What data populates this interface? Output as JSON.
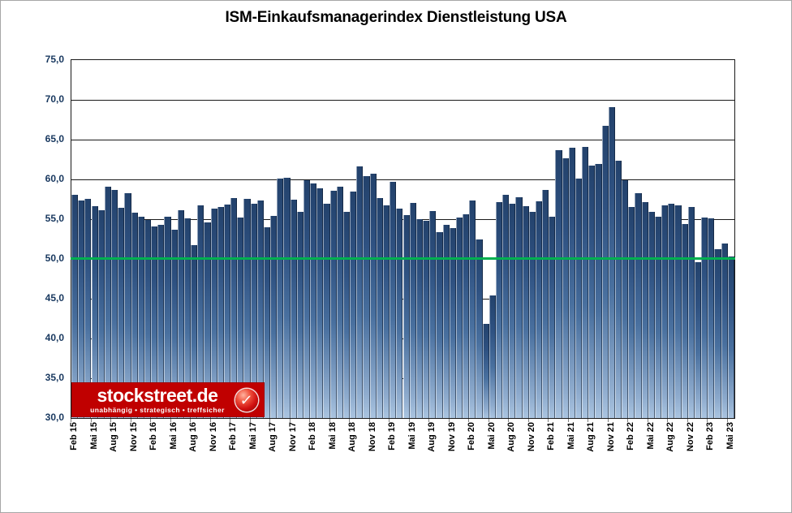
{
  "title": "ISM-Einkaufsmanagerindex Dienstleistung USA",
  "logo": {
    "name": "stockstreet.de",
    "tagline": "unabhängig • strategisch • treffsicher",
    "check_glyph": "✓",
    "bg_color": "#c00000"
  },
  "colors": {
    "bar_gradient_top": "#23426c",
    "bar_gradient_bottom": "#aac4e0",
    "reference_line": "#00b050",
    "y_axis_label": "#17375e",
    "gridline": "#1a1a1a",
    "tick": "#808080"
  },
  "chart_data": {
    "type": "bar",
    "title": "ISM-Einkaufsmanagerindex Dienstleistung USA",
    "frequency": "monthly",
    "x_start": "Feb 2015",
    "x_end": "Mai 2023",
    "x_tick_every_n_bars": 3,
    "x_tick_labels": [
      "Feb 15",
      "Mai 15",
      "Aug 15",
      "Nov 15",
      "Feb 16",
      "Mai 16",
      "Aug 16",
      "Nov 16",
      "Feb 17",
      "Mai 17",
      "Aug 17",
      "Nov 17",
      "Feb 18",
      "Mai 18",
      "Aug 18",
      "Nov 18",
      "Feb 19",
      "Mai 19",
      "Aug 19",
      "Nov 19",
      "Feb 20",
      "Mai 20",
      "Aug 20",
      "Nov 20",
      "Feb 21",
      "Mai 21",
      "Aug 21",
      "Nov 21",
      "Feb 22",
      "Mai 22",
      "Aug 22",
      "Nov 22",
      "Feb 23",
      "Mai 23"
    ],
    "y_tick_labels": [
      "75,0",
      "70,0",
      "65,0",
      "60,0",
      "55,0",
      "50,0",
      "45,0",
      "40,0",
      "35,0",
      "30,0"
    ],
    "ylim": [
      30,
      75
    ],
    "grid": "horizontal",
    "legend": "none",
    "reference_line_value": 50.0,
    "values": [
      58.1,
      57.3,
      57.6,
      56.6,
      56.1,
      59.1,
      58.7,
      56.4,
      58.3,
      55.8,
      55.3,
      54.9,
      54.1,
      54.3,
      55.3,
      53.7,
      56.1,
      55.1,
      51.7,
      56.7,
      54.6,
      56.3,
      56.5,
      56.8,
      57.7,
      55.2,
      57.6,
      56.9,
      57.3,
      54.0,
      55.4,
      60.1,
      60.2,
      57.4,
      55.9,
      59.9,
      59.5,
      58.9,
      56.9,
      58.6,
      59.1,
      55.9,
      58.5,
      61.6,
      60.4,
      60.7,
      57.7,
      56.7,
      59.7,
      56.3,
      55.5,
      57.0,
      55.0,
      54.8,
      56.0,
      53.4,
      54.3,
      53.9,
      55.2,
      55.6,
      57.3,
      52.5,
      41.8,
      45.4,
      57.1,
      58.1,
      56.9,
      57.8,
      56.6,
      55.9,
      57.2,
      58.7,
      55.3,
      63.7,
      62.7,
      64.0,
      60.1,
      64.1,
      61.7,
      61.9,
      66.7,
      69.1,
      62.3,
      59.9,
      56.5,
      58.3,
      57.1,
      55.9,
      55.3,
      56.7,
      56.9,
      56.7,
      54.4,
      56.5,
      49.6,
      55.2,
      55.1,
      51.2,
      51.9,
      50.3
    ]
  }
}
